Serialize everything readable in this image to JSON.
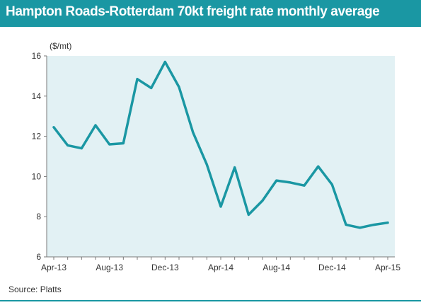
{
  "header": {
    "title": "Hampton Roads-Rotterdam 70kt freight rate monthly average"
  },
  "footer": {
    "source": "Source: Platts"
  },
  "colors": {
    "accent": "#1a97a3",
    "line": "#1a97a3",
    "plot_bg": "#e2f1f4"
  },
  "chart_data": {
    "type": "line",
    "title": "Hampton Roads-Rotterdam 70kt freight rate monthly average",
    "ylabel": "($/mt)",
    "xlabel": "",
    "ylim": [
      6,
      16
    ],
    "yticks": [
      6,
      8,
      10,
      12,
      14,
      16
    ],
    "xtick_labels": [
      "Apr-13",
      "Aug-13",
      "Dec-13",
      "Apr-14",
      "Aug-14",
      "Dec-14",
      "Apr-15"
    ],
    "grid": false,
    "legend": "none",
    "x": [
      "Apr-13",
      "May-13",
      "Jun-13",
      "Jul-13",
      "Aug-13",
      "Sep-13",
      "Oct-13",
      "Nov-13",
      "Dec-13",
      "Jan-14",
      "Feb-14",
      "Mar-14",
      "Apr-14",
      "May-14",
      "Jun-14",
      "Jul-14",
      "Aug-14",
      "Sep-14",
      "Oct-14",
      "Nov-14",
      "Dec-14",
      "Jan-15",
      "Feb-15",
      "Mar-15",
      "Apr-15"
    ],
    "series": [
      {
        "values": [
          12.45,
          11.55,
          11.4,
          12.55,
          11.6,
          11.65,
          14.85,
          14.4,
          15.7,
          14.45,
          12.2,
          10.6,
          8.5,
          10.45,
          8.1,
          8.8,
          9.8,
          9.7,
          9.55,
          10.5,
          9.6,
          7.6,
          7.45,
          7.6,
          7.7
        ]
      }
    ]
  }
}
